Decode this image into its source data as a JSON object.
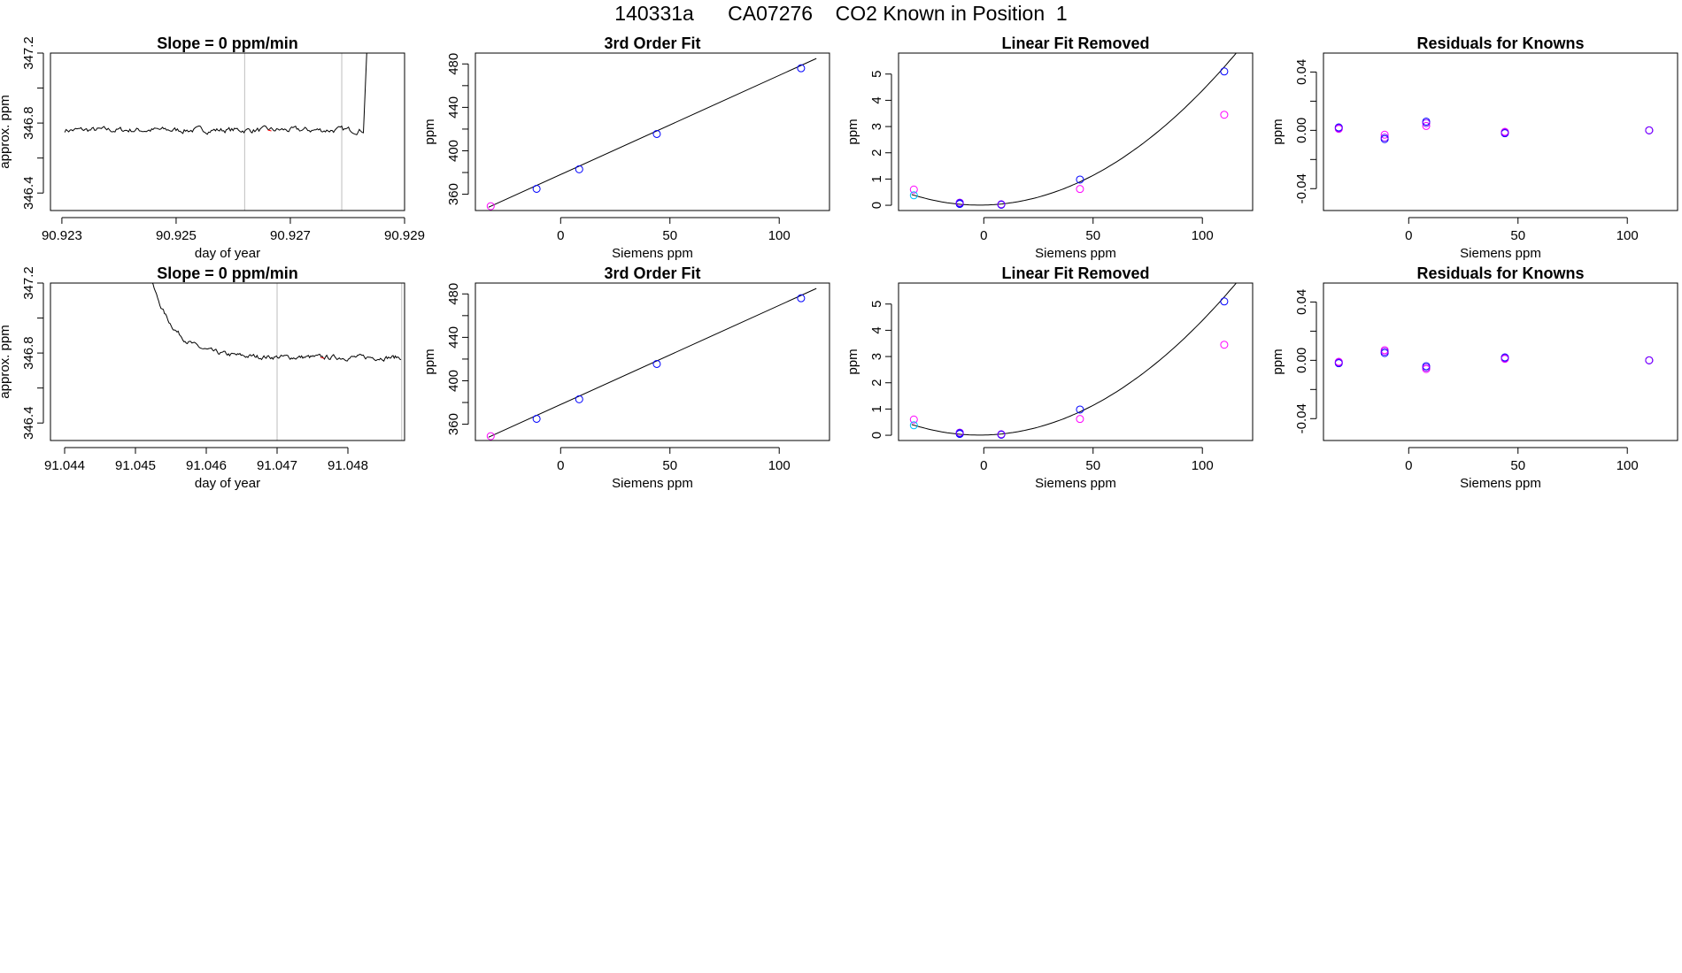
{
  "title": "140331a      CA07276    CO2 Known in Position  1",
  "colors": {
    "series_blue": "#0000FF",
    "series_magenta": "#FF00FF",
    "series_cyan": "#00BFFF",
    "series_purple": "#7F00FF",
    "line": "#000000",
    "red_marker": "#FF0000",
    "vline": "#BEBEBE"
  },
  "chart_data": [
    {
      "type": "line",
      "row": 0,
      "col": 0,
      "title": "Slope =  0  ppm/min",
      "xlabel": "day of year",
      "ylabel": "approx. ppm",
      "xlim": [
        90.9228,
        90.929
      ],
      "ylim": [
        346.3,
        347.2
      ],
      "xticks": [
        90.923,
        90.925,
        90.927,
        90.929
      ],
      "xtick_labels": [
        "90.923",
        "90.925",
        "90.927",
        "90.929"
      ],
      "yticks": [
        346.4,
        346.8,
        347.2
      ],
      "ytick_labels": [
        "346.4",
        "346.8",
        "347.2"
      ],
      "minor_yticks": [
        346.6,
        347.0
      ],
      "vlines": [
        90.9262,
        90.9279
      ],
      "series": [
        {
          "name": "trace",
          "x_start": 90.92305,
          "x_end": 90.92828,
          "base": 346.76,
          "noise": 0.012,
          "end_jump": [
            90.92835,
            347.3
          ]
        }
      ]
    },
    {
      "type": "line",
      "row": 1,
      "col": 0,
      "title": "Slope =  0  ppm/min",
      "xlabel": "day of year",
      "ylabel": "approx. ppm",
      "xlim": [
        91.0438,
        91.0488
      ],
      "ylim": [
        346.3,
        347.2
      ],
      "xticks": [
        91.044,
        91.045,
        91.046,
        91.047,
        91.048
      ],
      "xtick_labels": [
        "91.044",
        "91.045",
        "91.046",
        "91.047",
        "91.048"
      ],
      "yticks": [
        346.4,
        346.8,
        347.2
      ],
      "ytick_labels": [
        "346.4",
        "346.8",
        "347.2"
      ],
      "minor_yticks": [
        346.6,
        347.0
      ],
      "vlines": [
        91.047,
        91.04876
      ],
      "series": [
        {
          "name": "trace",
          "x_start": 91.0452,
          "x_end": 91.04875,
          "start_value": 347.25,
          "base": 346.775,
          "decay": 0.00033,
          "noise": 0.01
        }
      ]
    },
    {
      "type": "scatter",
      "row": 0,
      "col": 1,
      "title": "3rd Order Fit",
      "xlabel": "Siemens ppm",
      "ylabel": "ppm",
      "xlim": [
        -39,
        123
      ],
      "ylim": [
        345,
        490
      ],
      "xticks": [
        0,
        50,
        100
      ],
      "xtick_labels": [
        "0",
        "50",
        "100"
      ],
      "yticks": [
        360,
        400,
        440,
        480
      ],
      "ytick_labels": [
        "360",
        "400",
        "440",
        "480"
      ],
      "minor_yticks": [
        380,
        420,
        460
      ],
      "fit_line": {
        "x": [
          -33,
          117
        ],
        "y": [
          348,
          485
        ]
      },
      "series": [
        {
          "name": "blue",
          "color": "#0000FF",
          "x": [
            -11,
            8.5,
            44,
            110
          ],
          "y": [
            365,
            383,
            415.5,
            476
          ]
        },
        {
          "name": "magenta",
          "color": "#FF00FF",
          "x": [
            -32
          ],
          "y": [
            349
          ]
        }
      ]
    },
    {
      "type": "scatter",
      "row": 1,
      "col": 1,
      "title": "3rd Order Fit",
      "xlabel": "Siemens ppm",
      "ylabel": "ppm",
      "xlim": [
        -39,
        123
      ],
      "ylim": [
        345,
        490
      ],
      "xticks": [
        0,
        50,
        100
      ],
      "xtick_labels": [
        "0",
        "50",
        "100"
      ],
      "yticks": [
        360,
        400,
        440,
        480
      ],
      "ytick_labels": [
        "360",
        "400",
        "440",
        "480"
      ],
      "minor_yticks": [
        380,
        420,
        460
      ],
      "fit_line": {
        "x": [
          -33,
          117
        ],
        "y": [
          348,
          485
        ]
      },
      "series": [
        {
          "name": "blue",
          "color": "#0000FF",
          "x": [
            -11,
            8.5,
            44,
            110
          ],
          "y": [
            365,
            383,
            415.5,
            476
          ]
        },
        {
          "name": "magenta",
          "color": "#FF00FF",
          "x": [
            -32
          ],
          "y": [
            349
          ]
        }
      ]
    },
    {
      "type": "scatter",
      "row": 0,
      "col": 2,
      "title": "Linear Fit Removed",
      "xlabel": "Siemens ppm",
      "ylabel": "ppm",
      "xlim": [
        -39,
        123
      ],
      "ylim": [
        -0.2,
        5.8
      ],
      "xticks": [
        0,
        50,
        100
      ],
      "xtick_labels": [
        "0",
        "50",
        "100"
      ],
      "yticks": [
        0,
        1,
        2,
        3,
        4,
        5
      ],
      "ytick_labels": [
        "0",
        "1",
        "2",
        "3",
        "4",
        "5"
      ],
      "minor_yticks": [],
      "fit_curve": {
        "a": 0.00042,
        "b": 0.00165,
        "c": 0.008,
        "x_start": -33,
        "x_end": 117
      },
      "series": [
        {
          "name": "blue",
          "color": "#0000FF",
          "x": [
            -11,
            -11,
            8,
            44,
            110
          ],
          "y": [
            0.08,
            0.05,
            0.02,
            0.98,
            5.1
          ]
        },
        {
          "name": "magenta",
          "color": "#FF00FF",
          "x": [
            -32,
            44,
            110
          ],
          "y": [
            0.6,
            0.62,
            3.45
          ]
        },
        {
          "name": "cyan",
          "color": "#00BFFF",
          "x": [
            -32
          ],
          "y": [
            0.38
          ]
        },
        {
          "name": "purple",
          "color": "#7F00FF",
          "x": [
            -11,
            8
          ],
          "y": [
            0.1,
            0.04
          ]
        }
      ]
    },
    {
      "type": "scatter",
      "row": 1,
      "col": 2,
      "title": "Linear Fit Removed",
      "xlabel": "Siemens ppm",
      "ylabel": "ppm",
      "xlim": [
        -39,
        123
      ],
      "ylim": [
        -0.2,
        5.8
      ],
      "xticks": [
        0,
        50,
        100
      ],
      "xtick_labels": [
        "0",
        "50",
        "100"
      ],
      "yticks": [
        0,
        1,
        2,
        3,
        4,
        5
      ],
      "ytick_labels": [
        "0",
        "1",
        "2",
        "3",
        "4",
        "5"
      ],
      "minor_yticks": [],
      "fit_curve": {
        "a": 0.00042,
        "b": 0.00165,
        "c": 0.008,
        "x_start": -33,
        "x_end": 117
      },
      "series": [
        {
          "name": "blue",
          "color": "#0000FF",
          "x": [
            -11,
            -11,
            8,
            44,
            110
          ],
          "y": [
            0.08,
            0.05,
            0.02,
            0.98,
            5.1
          ]
        },
        {
          "name": "magenta",
          "color": "#FF00FF",
          "x": [
            -32,
            44,
            110
          ],
          "y": [
            0.6,
            0.62,
            3.45
          ]
        },
        {
          "name": "cyan",
          "color": "#00BFFF",
          "x": [
            -32
          ],
          "y": [
            0.38
          ]
        },
        {
          "name": "purple",
          "color": "#7F00FF",
          "x": [
            -11,
            8
          ],
          "y": [
            0.1,
            0.04
          ]
        }
      ]
    },
    {
      "type": "scatter",
      "row": 0,
      "col": 3,
      "title": "Residuals for Knowns",
      "xlabel": "Siemens ppm",
      "ylabel": "ppm",
      "xlim": [
        -39,
        123
      ],
      "ylim": [
        -0.055,
        0.053
      ],
      "xticks": [
        0,
        50,
        100
      ],
      "xtick_labels": [
        "0",
        "50",
        "100"
      ],
      "yticks": [
        -0.04,
        0.0,
        0.04
      ],
      "ytick_labels": [
        "-0.04",
        "0.00",
        "0.04"
      ],
      "minor_yticks": [
        -0.02,
        0.02
      ],
      "series": [
        {
          "name": "magenta",
          "color": "#FF00FF",
          "x": [
            -32,
            -11,
            8,
            44,
            110
          ],
          "y": [
            0.001,
            -0.003,
            0.003,
            -0.001,
            0.0
          ]
        },
        {
          "name": "blue",
          "color": "#0000FF",
          "x": [
            -32,
            -11,
            8,
            44,
            110
          ],
          "y": [
            0.002,
            -0.006,
            0.006,
            -0.002,
            0.0
          ]
        },
        {
          "name": "purple",
          "color": "#7F00FF",
          "x": [
            -32,
            -11,
            8,
            44,
            110
          ],
          "y": [
            0.0015,
            -0.005,
            0.005,
            -0.0015,
            0.0
          ]
        }
      ]
    },
    {
      "type": "scatter",
      "row": 1,
      "col": 3,
      "title": "Residuals for Knowns",
      "xlabel": "Siemens ppm",
      "ylabel": "ppm",
      "xlim": [
        -39,
        123
      ],
      "ylim": [
        -0.055,
        0.053
      ],
      "xticks": [
        0,
        50,
        100
      ],
      "xtick_labels": [
        "0",
        "50",
        "100"
      ],
      "yticks": [
        -0.04,
        0.0,
        0.04
      ],
      "ytick_labels": [
        "-0.04",
        "0.00",
        "0.04"
      ],
      "minor_yticks": [
        -0.02,
        0.02
      ],
      "series": [
        {
          "name": "magenta",
          "color": "#FF00FF",
          "x": [
            -32,
            -11,
            8,
            44,
            110
          ],
          "y": [
            -0.001,
            0.007,
            -0.006,
            0.001,
            0.0
          ]
        },
        {
          "name": "blue",
          "color": "#0000FF",
          "x": [
            -32,
            -11,
            8,
            44,
            110
          ],
          "y": [
            -0.002,
            0.005,
            -0.004,
            0.002,
            0.0
          ]
        },
        {
          "name": "purple",
          "color": "#7F00FF",
          "x": [
            -32,
            -11,
            8,
            44,
            110
          ],
          "y": [
            -0.0015,
            0.006,
            -0.005,
            0.0015,
            0.0
          ]
        }
      ]
    }
  ]
}
